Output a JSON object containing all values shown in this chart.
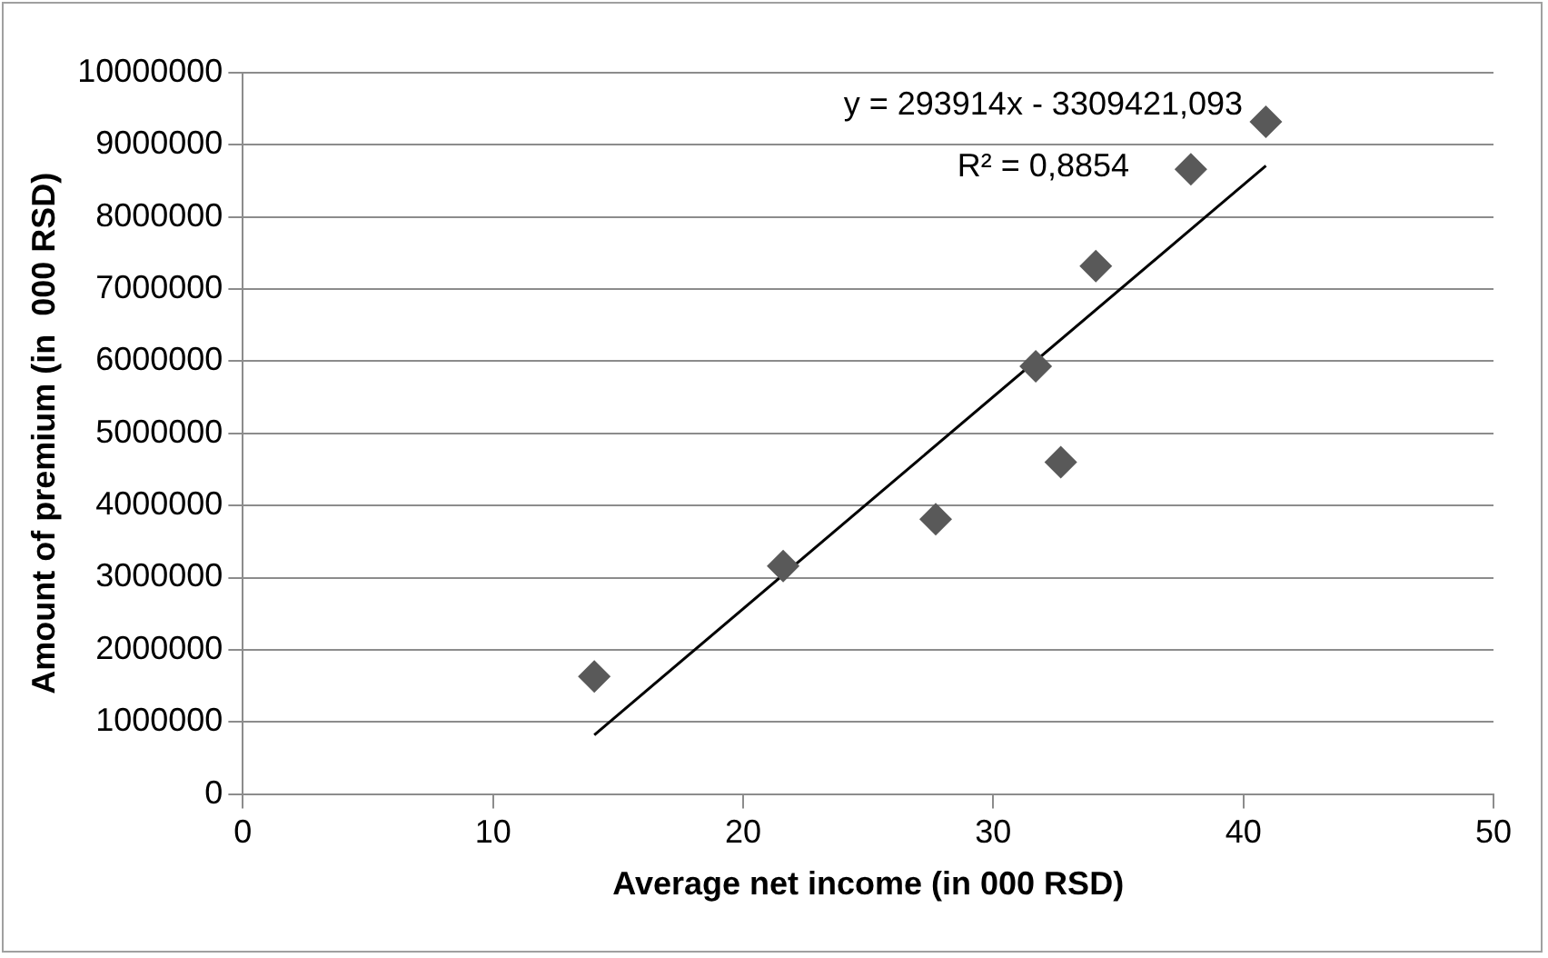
{
  "chart_data": {
    "type": "scatter",
    "xlabel": "Average net income (in 000 RSD)",
    "ylabel": "Amount of premium (in  000 RSD)",
    "x": [
      14.05,
      21.6,
      27.7,
      31.7,
      32.7,
      34.1,
      37.9,
      40.9
    ],
    "series": [
      {
        "color": "#595959",
        "marker": "diamond",
        "values": [
          1630000,
          3160000,
          3810000,
          5930000,
          4600000,
          7320000,
          8660000,
          9320000
        ]
      },
      {
        "type": "line",
        "color": "#000000",
        "marker": "none",
        "x": [
          14.05,
          40.9
        ],
        "values": [
          820000,
          8710000
        ]
      }
    ],
    "xlim": [
      0,
      50
    ],
    "xticks": [
      0,
      10,
      20,
      30,
      40,
      50
    ],
    "ylim": [
      0,
      10000000
    ],
    "yticks": [
      0,
      1000000,
      2000000,
      3000000,
      4000000,
      5000000,
      6000000,
      7000000,
      8000000,
      9000000,
      10000000
    ],
    "grid": "y",
    "legend": false,
    "annotations": [
      "y = 293914x - 3309421,093",
      "R² = 0,8854"
    ]
  }
}
